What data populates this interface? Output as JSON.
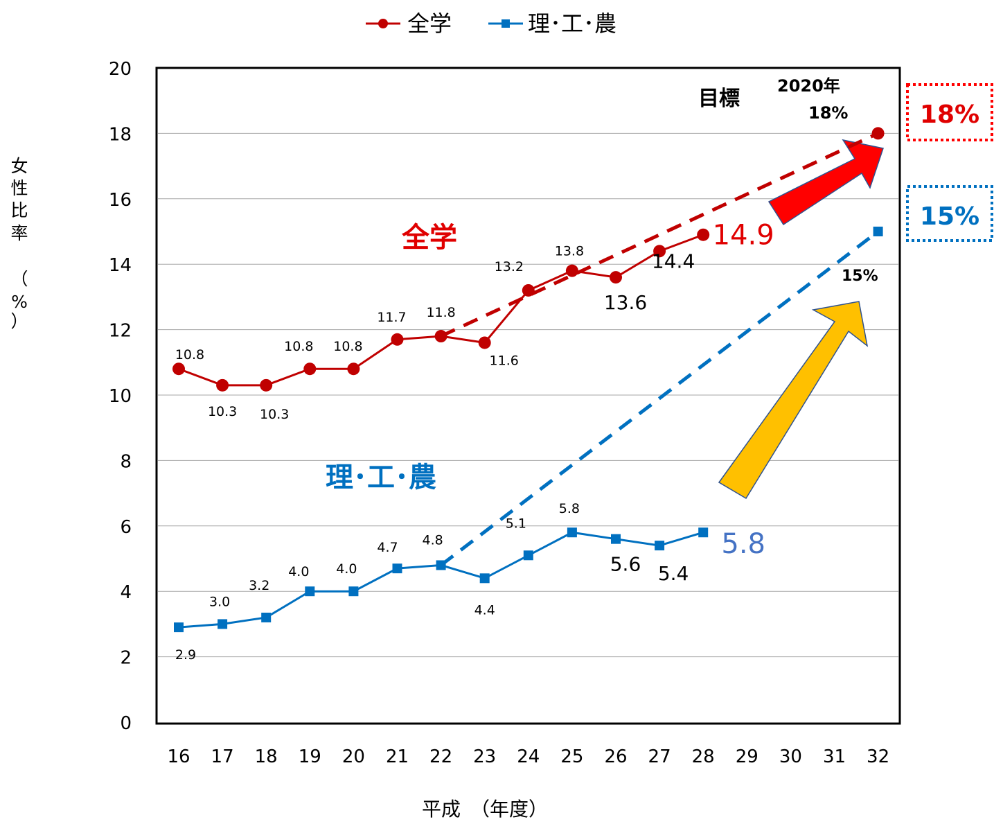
{
  "chart_data": {
    "type": "line",
    "categories": [
      "16",
      "17",
      "18",
      "19",
      "20",
      "21",
      "22",
      "23",
      "24",
      "25",
      "26",
      "27",
      "28",
      "29",
      "30",
      "31",
      "32"
    ],
    "ylim": [
      0,
      20
    ],
    "yticks": [
      0,
      2,
      4,
      6,
      8,
      10,
      12,
      14,
      16,
      18,
      20
    ],
    "grid": true,
    "legend_position": "top-center",
    "xlabel": "平成　（年度）",
    "ylabel": "女性比率（%）",
    "series": [
      {
        "name": "全学",
        "color": "#C00000",
        "marker": "circle",
        "values": [
          10.8,
          10.3,
          10.3,
          10.8,
          10.8,
          11.7,
          11.8,
          11.6,
          13.2,
          13.8,
          13.6,
          14.4,
          14.9,
          null,
          null,
          null,
          18
        ],
        "labels": [
          "10.8",
          "10.3",
          "10.3",
          "10.8",
          "10.8",
          "11.7",
          "11.8",
          "11.6",
          "13.2",
          "13.8",
          "13.6",
          "14.4",
          "14.9",
          "",
          "",
          "",
          ""
        ],
        "trend": {
          "from": [
            6,
            11.8
          ],
          "to": [
            16,
            18
          ]
        }
      },
      {
        "name": "理･工･農",
        "color": "#0070C0",
        "marker": "square",
        "values": [
          2.9,
          3.0,
          3.2,
          4.0,
          4.0,
          4.7,
          4.8,
          4.4,
          5.1,
          5.8,
          5.6,
          5.4,
          5.8,
          null,
          null,
          null,
          15
        ],
        "labels": [
          "2.9",
          "3.0",
          "3.2",
          "4.0",
          "4.0",
          "4.7",
          "4.8",
          "4.4",
          "5.1",
          "5.8",
          "5.6",
          "5.4",
          "5.8",
          "",
          "",
          "",
          ""
        ],
        "trend": {
          "from": [
            6,
            4.8
          ],
          "to": [
            16,
            15
          ]
        }
      }
    ],
    "annotations": {
      "goal_label": "目標",
      "goal_year": "2020年",
      "goal_all": "18%",
      "goal_stem": "15%",
      "box_all": "18%",
      "box_stem": "15%",
      "series_label_all": "全学",
      "series_label_stem": "理･工･農"
    },
    "colors": {
      "red_text": "#E00000",
      "blue_text": "#0070C0",
      "big_blue_value": "#4472C4",
      "red_arrow": "#FF0000",
      "gold_arrow": "#FFC000"
    }
  }
}
